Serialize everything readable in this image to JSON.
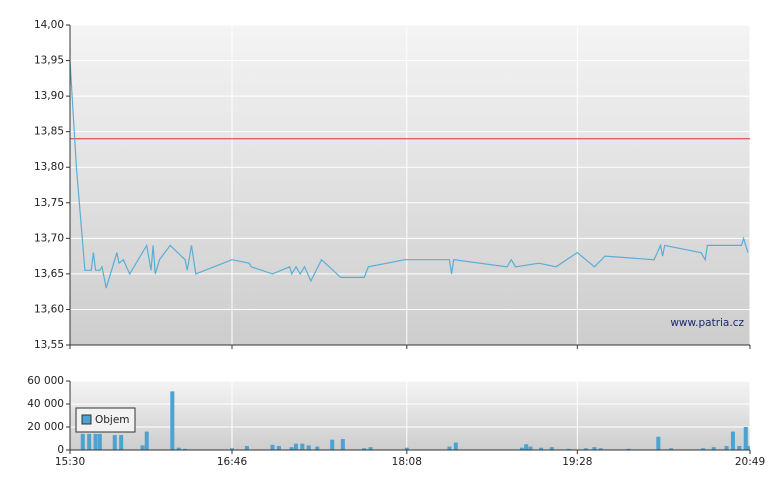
{
  "watermark": "www.patria.cz",
  "chart_data": [
    {
      "type": "line",
      "color": "#5aaed6",
      "xlim": [
        "15:30",
        "20:49"
      ],
      "x": [
        "15:30",
        "15:33",
        "15:37",
        "15:40",
        "15:41",
        "15:42",
        "15:44",
        "15:45",
        "15:47",
        "15:52",
        "15:53",
        "15:55",
        "15:58",
        "16:06",
        "16:08",
        "16:09",
        "16:10",
        "16:12",
        "16:17",
        "16:24",
        "16:25",
        "16:27",
        "16:29",
        "16:46",
        "16:54",
        "16:55",
        "17:05",
        "17:13",
        "17:14",
        "17:16",
        "17:18",
        "17:20",
        "17:23",
        "17:28",
        "17:37",
        "17:48",
        "17:50",
        "18:07",
        "18:28",
        "18:29",
        "18:30",
        "18:55",
        "18:57",
        "18:59",
        "19:10",
        "19:18",
        "19:28",
        "19:36",
        "19:41",
        "20:04",
        "20:07",
        "20:08",
        "20:09",
        "20:26",
        "20:28",
        "20:29",
        "20:39",
        "20:40",
        "20:45",
        "20:46",
        "20:48"
      ],
      "values": [
        13.95,
        13.8,
        13.655,
        13.655,
        13.68,
        13.655,
        13.655,
        13.66,
        13.63,
        13.68,
        13.665,
        13.67,
        13.65,
        13.69,
        13.655,
        13.69,
        13.65,
        13.67,
        13.69,
        13.67,
        13.655,
        13.69,
        13.65,
        13.67,
        13.665,
        13.66,
        13.65,
        13.66,
        13.65,
        13.66,
        13.65,
        13.66,
        13.64,
        13.67,
        13.645,
        13.645,
        13.66,
        13.67,
        13.67,
        13.65,
        13.67,
        13.66,
        13.67,
        13.66,
        13.665,
        13.66,
        13.68,
        13.66,
        13.675,
        13.67,
        13.69,
        13.675,
        13.69,
        13.68,
        13.67,
        13.69,
        13.69,
        13.69,
        13.69,
        13.7,
        13.68
      ],
      "reference_value": 13.84,
      "reference_color": "#e03030",
      "ylim": [
        13.55,
        14.0
      ],
      "yticks": [
        {
          "value": 13.55,
          "label": "13,55"
        },
        {
          "value": 13.6,
          "label": "13,60"
        },
        {
          "value": 13.65,
          "label": "13,65"
        },
        {
          "value": 13.7,
          "label": "13,70"
        },
        {
          "value": 13.75,
          "label": "13,75"
        },
        {
          "value": 13.8,
          "label": "13,80"
        },
        {
          "value": 13.85,
          "label": "13,85"
        },
        {
          "value": 13.9,
          "label": "13,90"
        },
        {
          "value": 13.95,
          "label": "13,95"
        },
        {
          "value": 14.0,
          "label": "14,00"
        }
      ],
      "grid": true
    },
    {
      "type": "bar",
      "xlim": [
        "15:30",
        "20:49"
      ],
      "xticks": [
        "15:30",
        "16:46",
        "18:08",
        "19:28",
        "20:49"
      ],
      "x": [
        "15:36",
        "15:39",
        "15:42",
        "15:44",
        "15:51",
        "15:54",
        "16:04",
        "16:06",
        "16:18",
        "16:21",
        "16:24",
        "16:46",
        "16:53",
        "17:05",
        "17:08",
        "17:14",
        "17:16",
        "17:19",
        "17:22",
        "17:26",
        "17:33",
        "17:38",
        "17:48",
        "17:51",
        "18:08",
        "18:28",
        "18:31",
        "19:02",
        "19:04",
        "19:06",
        "19:11",
        "19:16",
        "19:24",
        "19:32",
        "19:36",
        "19:39",
        "19:52",
        "20:06",
        "20:12",
        "20:27",
        "20:32",
        "20:38",
        "20:41",
        "20:44",
        "20:47",
        "20:48"
      ],
      "series": [
        {
          "name": "Objem",
          "color": "#4aa3d0",
          "values": [
            14000,
            14000,
            14000,
            14000,
            13000,
            13000,
            4000,
            16000,
            51000,
            2000,
            1000,
            1500,
            3500,
            4500,
            3500,
            2500,
            5500,
            5500,
            4000,
            3000,
            9000,
            9500,
            1500,
            2500,
            2000,
            3000,
            6500,
            2000,
            5000,
            3000,
            2000,
            2500,
            1000,
            1500,
            2500,
            1500,
            1000,
            11500,
            1500,
            1500,
            2500,
            3500,
            16000,
            3500,
            20000,
            3500
          ]
        }
      ],
      "ylim": [
        0,
        60000
      ],
      "yticks": [
        0,
        {
          "value": 20000,
          "label": "20 000"
        },
        {
          "value": 40000,
          "label": "40 000"
        },
        {
          "value": 60000,
          "label": "60 000"
        }
      ],
      "grid": true,
      "legend": "bottom-left"
    }
  ]
}
